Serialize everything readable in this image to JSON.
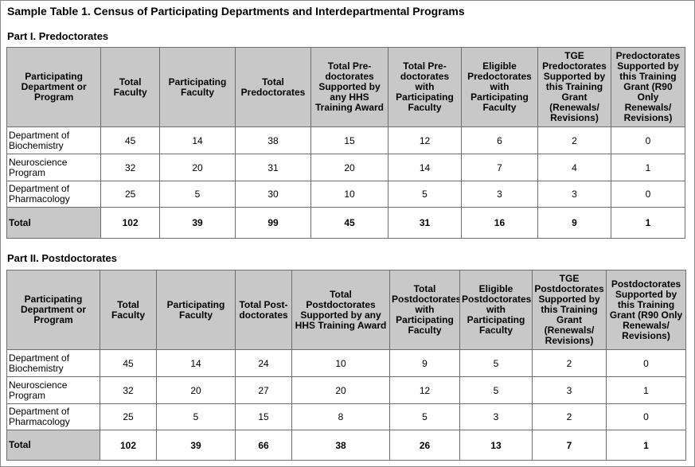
{
  "title": "Sample Table 1. Census of Participating Departments and Interdepartmental Programs",
  "part1": {
    "heading": "Part I. Predoctorates",
    "headers": [
      "Participating Department or Program",
      "Total Faculty",
      "Participating Faculty",
      "Total Predoctorates",
      "Total Pre-doctorates Supported by any HHS Training Award",
      "Total Pre-doctorates with Participating Faculty",
      "Eligible Predoctorates with Participating Faculty",
      "TGE Predoctorates Supported by this Training Grant (Renewals/ Revisions)",
      "Predoctorates Supported by this Training Grant (R90 Only Renewals/ Revisions)"
    ],
    "rows": [
      [
        "Department of Biochemistry",
        "45",
        "14",
        "38",
        "15",
        "12",
        "6",
        "2",
        "0"
      ],
      [
        "Neuroscience Program",
        "32",
        "20",
        "31",
        "20",
        "14",
        "7",
        "4",
        "1"
      ],
      [
        "Department of Pharmacology",
        "25",
        "5",
        "30",
        "10",
        "5",
        "3",
        "3",
        "0"
      ],
      [
        "Total",
        "102",
        "39",
        "99",
        "45",
        "31",
        "16",
        "9",
        "1"
      ]
    ]
  },
  "part2": {
    "heading": "Part II. Postdoctorates",
    "headers": [
      "Participating Department or Program",
      "Total Faculty",
      "Participating Faculty",
      "Total Post-doctorates",
      "Total Postdoctorates Supported by any HHS Training Award",
      "Total Postdoctorates with Participating Faculty",
      "Eligible Postdoctorates with Participating Faculty",
      "TGE Postdoctorates Supported by this Training Grant (Renewals/ Revisions)",
      "Postdoctorates Supported by this Training Grant (R90 Only Renewals/ Revisions)"
    ],
    "rows": [
      [
        "Department of Biochemistry",
        "45",
        "14",
        "24",
        "10",
        "9",
        "5",
        "2",
        "0"
      ],
      [
        "Neuroscience Program",
        "32",
        "20",
        "27",
        "20",
        "12",
        "5",
        "3",
        "1"
      ],
      [
        "Department of Pharmacology",
        "25",
        "5",
        "15",
        "8",
        "5",
        "3",
        "2",
        "0"
      ],
      [
        "Total",
        "102",
        "39",
        "66",
        "38",
        "26",
        "13",
        "7",
        "1"
      ]
    ]
  }
}
